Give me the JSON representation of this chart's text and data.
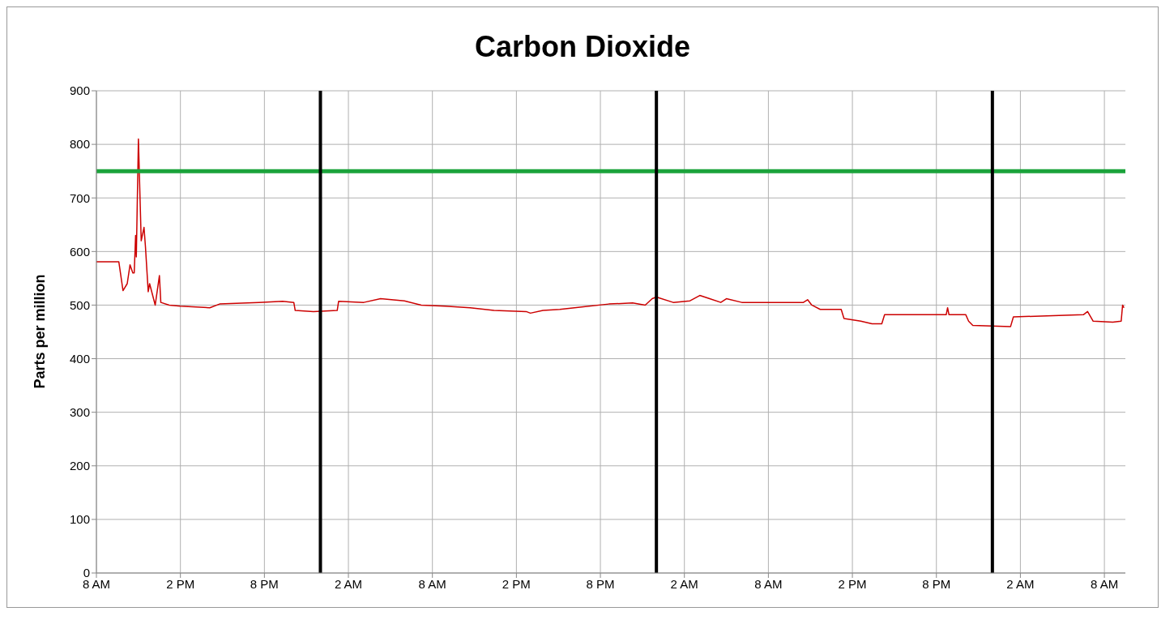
{
  "chart_data": {
    "type": "line",
    "title": "Carbon Dioxide",
    "ylabel": "Parts per million",
    "x": [
      "--01-01T08:00",
      "--01-01T09:36",
      "--01-01T09:54",
      "--01-01T10:12",
      "--01-01T10:24",
      "--01-01T10:36",
      "--01-01T10:42",
      "--01-01T10:48",
      "--01-01T10:51",
      "--01-01T11:00",
      "--01-01T11:12",
      "--01-01T11:24",
      "--01-01T11:30",
      "--01-01T11:42",
      "--01-01T11:48",
      "--01-01T12:12",
      "--01-01T12:30",
      "--01-01T12:36",
      "--01-01T13:12",
      "--01-01T14:00",
      "--01-01T16:06",
      "--01-01T16:48",
      "--01-01T19:36",
      "--01-01T21:18",
      "--01-01T22:06",
      "--01-01T22:12",
      "--01-01T23:30",
      "--01-02T01:12",
      "--01-02T01:18",
      "--01-02T03:06",
      "--01-02T04:18",
      "--01-02T06:00",
      "--01-02T07:12",
      "--01-02T08:54",
      "--01-02T10:42",
      "--01-02T12:24",
      "--01-02T14:42",
      "--01-02T15:00",
      "--01-02T15:54",
      "--01-02T17:06",
      "--01-02T18:48",
      "--01-02T20:36",
      "--01-02T22:18",
      "--01-02T23:12",
      "--01-02T23:42",
      "--01-03T00:00",
      "--01-03T01:12",
      "--01-03T02:24",
      "--01-03T03:06",
      "--01-03T03:48",
      "--01-03T04:36",
      "--01-03T05:00",
      "--01-03T06:06",
      "--01-03T10:30",
      "--01-03T10:48",
      "--01-03T11:06",
      "--01-03T11:42",
      "--01-03T13:12",
      "--01-03T13:24",
      "--01-03T14:36",
      "--01-03T15:24",
      "--01-03T16:06",
      "--01-03T16:18",
      "--01-03T20:42",
      "--01-03T20:48",
      "--01-03T20:54",
      "--01-03T22:06",
      "--01-03T22:18",
      "--01-03T22:36",
      "--01-04T01:18",
      "--01-04T01:30",
      "--01-04T03:54",
      "--01-04T06:30",
      "--01-04T06:48",
      "--01-04T07:12",
      "--01-04T08:36",
      "--01-04T09:12",
      "--01-04T09:18",
      "--01-04T09:24"
    ],
    "series": [
      {
        "color": "#cc0000",
        "values": [
          581,
          581,
          527,
          540,
          575,
          560,
          560,
          630,
          590,
          810,
          620,
          645,
          610,
          525,
          540,
          500,
          555,
          505,
          500,
          498,
          495,
          502,
          505,
          507,
          505,
          490,
          488,
          490,
          507,
          505,
          512,
          508,
          500,
          498,
          495,
          490,
          488,
          485,
          490,
          492,
          497,
          502,
          504,
          500,
          512,
          515,
          505,
          508,
          518,
          512,
          505,
          512,
          505,
          505,
          510,
          500,
          492,
          492,
          475,
          470,
          465,
          465,
          482,
          482,
          495,
          482,
          482,
          470,
          462,
          460,
          478,
          480,
          482,
          488,
          470,
          468,
          470,
          500,
          495
        ]
      }
    ],
    "xlim": [
      "--01-01T08:00",
      "--01-04T09:30"
    ],
    "xticks": [
      {
        "value": "--01-01T08:00",
        "label": "8 AM"
      },
      {
        "value": "--01-01T14:00",
        "label": "2 PM"
      },
      {
        "value": "--01-01T20:00",
        "label": "8 PM"
      },
      {
        "value": "--01-02T02:00",
        "label": "2 AM"
      },
      {
        "value": "--01-02T08:00",
        "label": "8 AM"
      },
      {
        "value": "--01-02T14:00",
        "label": "2 PM"
      },
      {
        "value": "--01-02T20:00",
        "label": "8 PM"
      },
      {
        "value": "--01-03T02:00",
        "label": "2 AM"
      },
      {
        "value": "--01-03T08:00",
        "label": "8 AM"
      },
      {
        "value": "--01-03T14:00",
        "label": "2 PM"
      },
      {
        "value": "--01-03T20:00",
        "label": "8 PM"
      },
      {
        "value": "--01-04T02:00",
        "label": "2 AM"
      },
      {
        "value": "--01-04T08:00",
        "label": "8 AM"
      }
    ],
    "ylim": [
      0,
      900
    ],
    "yticks": [
      0,
      100,
      200,
      300,
      400,
      500,
      600,
      700,
      800,
      900
    ],
    "ref_lines": [
      {
        "axis": "y",
        "value": 750,
        "color": "#1ba33b"
      },
      {
        "axis": "x",
        "value": "--01-02T00:00",
        "color": "#000000"
      },
      {
        "axis": "x",
        "value": "--01-03T00:00",
        "color": "#000000"
      },
      {
        "axis": "x",
        "value": "--01-04T00:00",
        "color": "#000000"
      }
    ],
    "grid": true,
    "legend": false,
    "marker": "none",
    "line_style": "solid"
  }
}
